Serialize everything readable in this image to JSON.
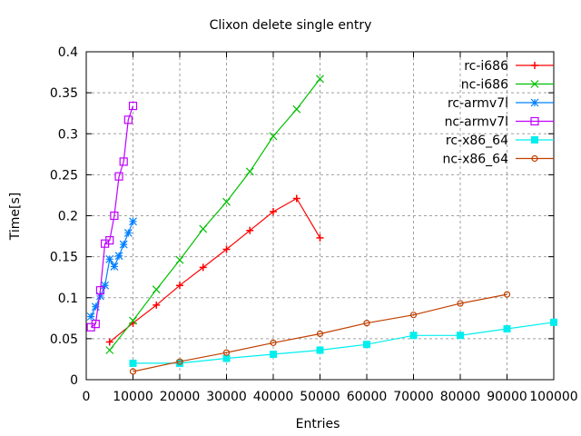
{
  "chart_data": {
    "type": "line",
    "title": "Clixon delete single entry",
    "xlabel": "Entries",
    "ylabel": "Time[s]",
    "xlim": [
      0,
      100000
    ],
    "ylim": [
      0,
      0.4
    ],
    "grid": true,
    "legend_placement": "top-right",
    "xticks": [
      0,
      10000,
      20000,
      30000,
      40000,
      50000,
      60000,
      70000,
      80000,
      90000,
      100000
    ],
    "xtick_labels": [
      "0",
      "10000",
      "20000",
      "30000",
      "40000",
      "50000",
      "60000",
      "70000",
      "80000",
      "90000",
      "100000"
    ],
    "yticks": [
      0,
      0.05,
      0.1,
      0.15,
      0.2,
      0.25,
      0.3,
      0.35,
      0.4
    ],
    "ytick_labels": [
      "0",
      "0.05",
      "0.1",
      "0.15",
      "0.2",
      "0.25",
      "0.3",
      "0.35",
      "0.4"
    ],
    "series": [
      {
        "name": "rc-i686",
        "color": "#ff0000",
        "marker": "plus",
        "x": [
          5000,
          10000,
          15000,
          20000,
          25000,
          30000,
          35000,
          40000,
          45000,
          50000
        ],
        "y": [
          0.046,
          0.069,
          0.091,
          0.115,
          0.137,
          0.159,
          0.182,
          0.205,
          0.221,
          0.173
        ]
      },
      {
        "name": "nc-i686",
        "color": "#00c000",
        "marker": "cross",
        "x": [
          5000,
          10000,
          15000,
          20000,
          25000,
          30000,
          35000,
          40000,
          45000,
          50000
        ],
        "y": [
          0.036,
          0.072,
          0.11,
          0.146,
          0.184,
          0.217,
          0.254,
          0.297,
          0.33,
          0.367
        ]
      },
      {
        "name": "rc-armv7l",
        "color": "#0080ff",
        "marker": "star",
        "x": [
          1000,
          2000,
          3000,
          4000,
          5000,
          6000,
          7000,
          8000,
          9000,
          10000
        ],
        "y": [
          0.077,
          0.089,
          0.102,
          0.115,
          0.147,
          0.138,
          0.151,
          0.165,
          0.179,
          0.193
        ]
      },
      {
        "name": "nc-armv7l",
        "color": "#c000ff",
        "marker": "square",
        "x": [
          1000,
          2000,
          3000,
          4000,
          5000,
          6000,
          7000,
          8000,
          9000,
          10000
        ],
        "y": [
          0.064,
          0.068,
          0.109,
          0.166,
          0.17,
          0.2,
          0.248,
          0.266,
          0.317,
          0.334
        ]
      },
      {
        "name": "rc-x86_64",
        "color": "#00eeee",
        "marker": "filled-square",
        "x": [
          10000,
          20000,
          30000,
          40000,
          50000,
          60000,
          70000,
          80000,
          90000,
          100000
        ],
        "y": [
          0.02,
          0.02,
          0.026,
          0.031,
          0.036,
          0.043,
          0.054,
          0.054,
          0.062,
          0.07
        ]
      },
      {
        "name": "nc-x86_64",
        "color": "#c04000",
        "marker": "circle",
        "x": [
          10000,
          20000,
          30000,
          40000,
          50000,
          60000,
          70000,
          80000,
          90000
        ],
        "y": [
          0.01,
          0.022,
          0.033,
          0.045,
          0.056,
          0.069,
          0.079,
          0.093,
          0.104
        ]
      }
    ]
  }
}
